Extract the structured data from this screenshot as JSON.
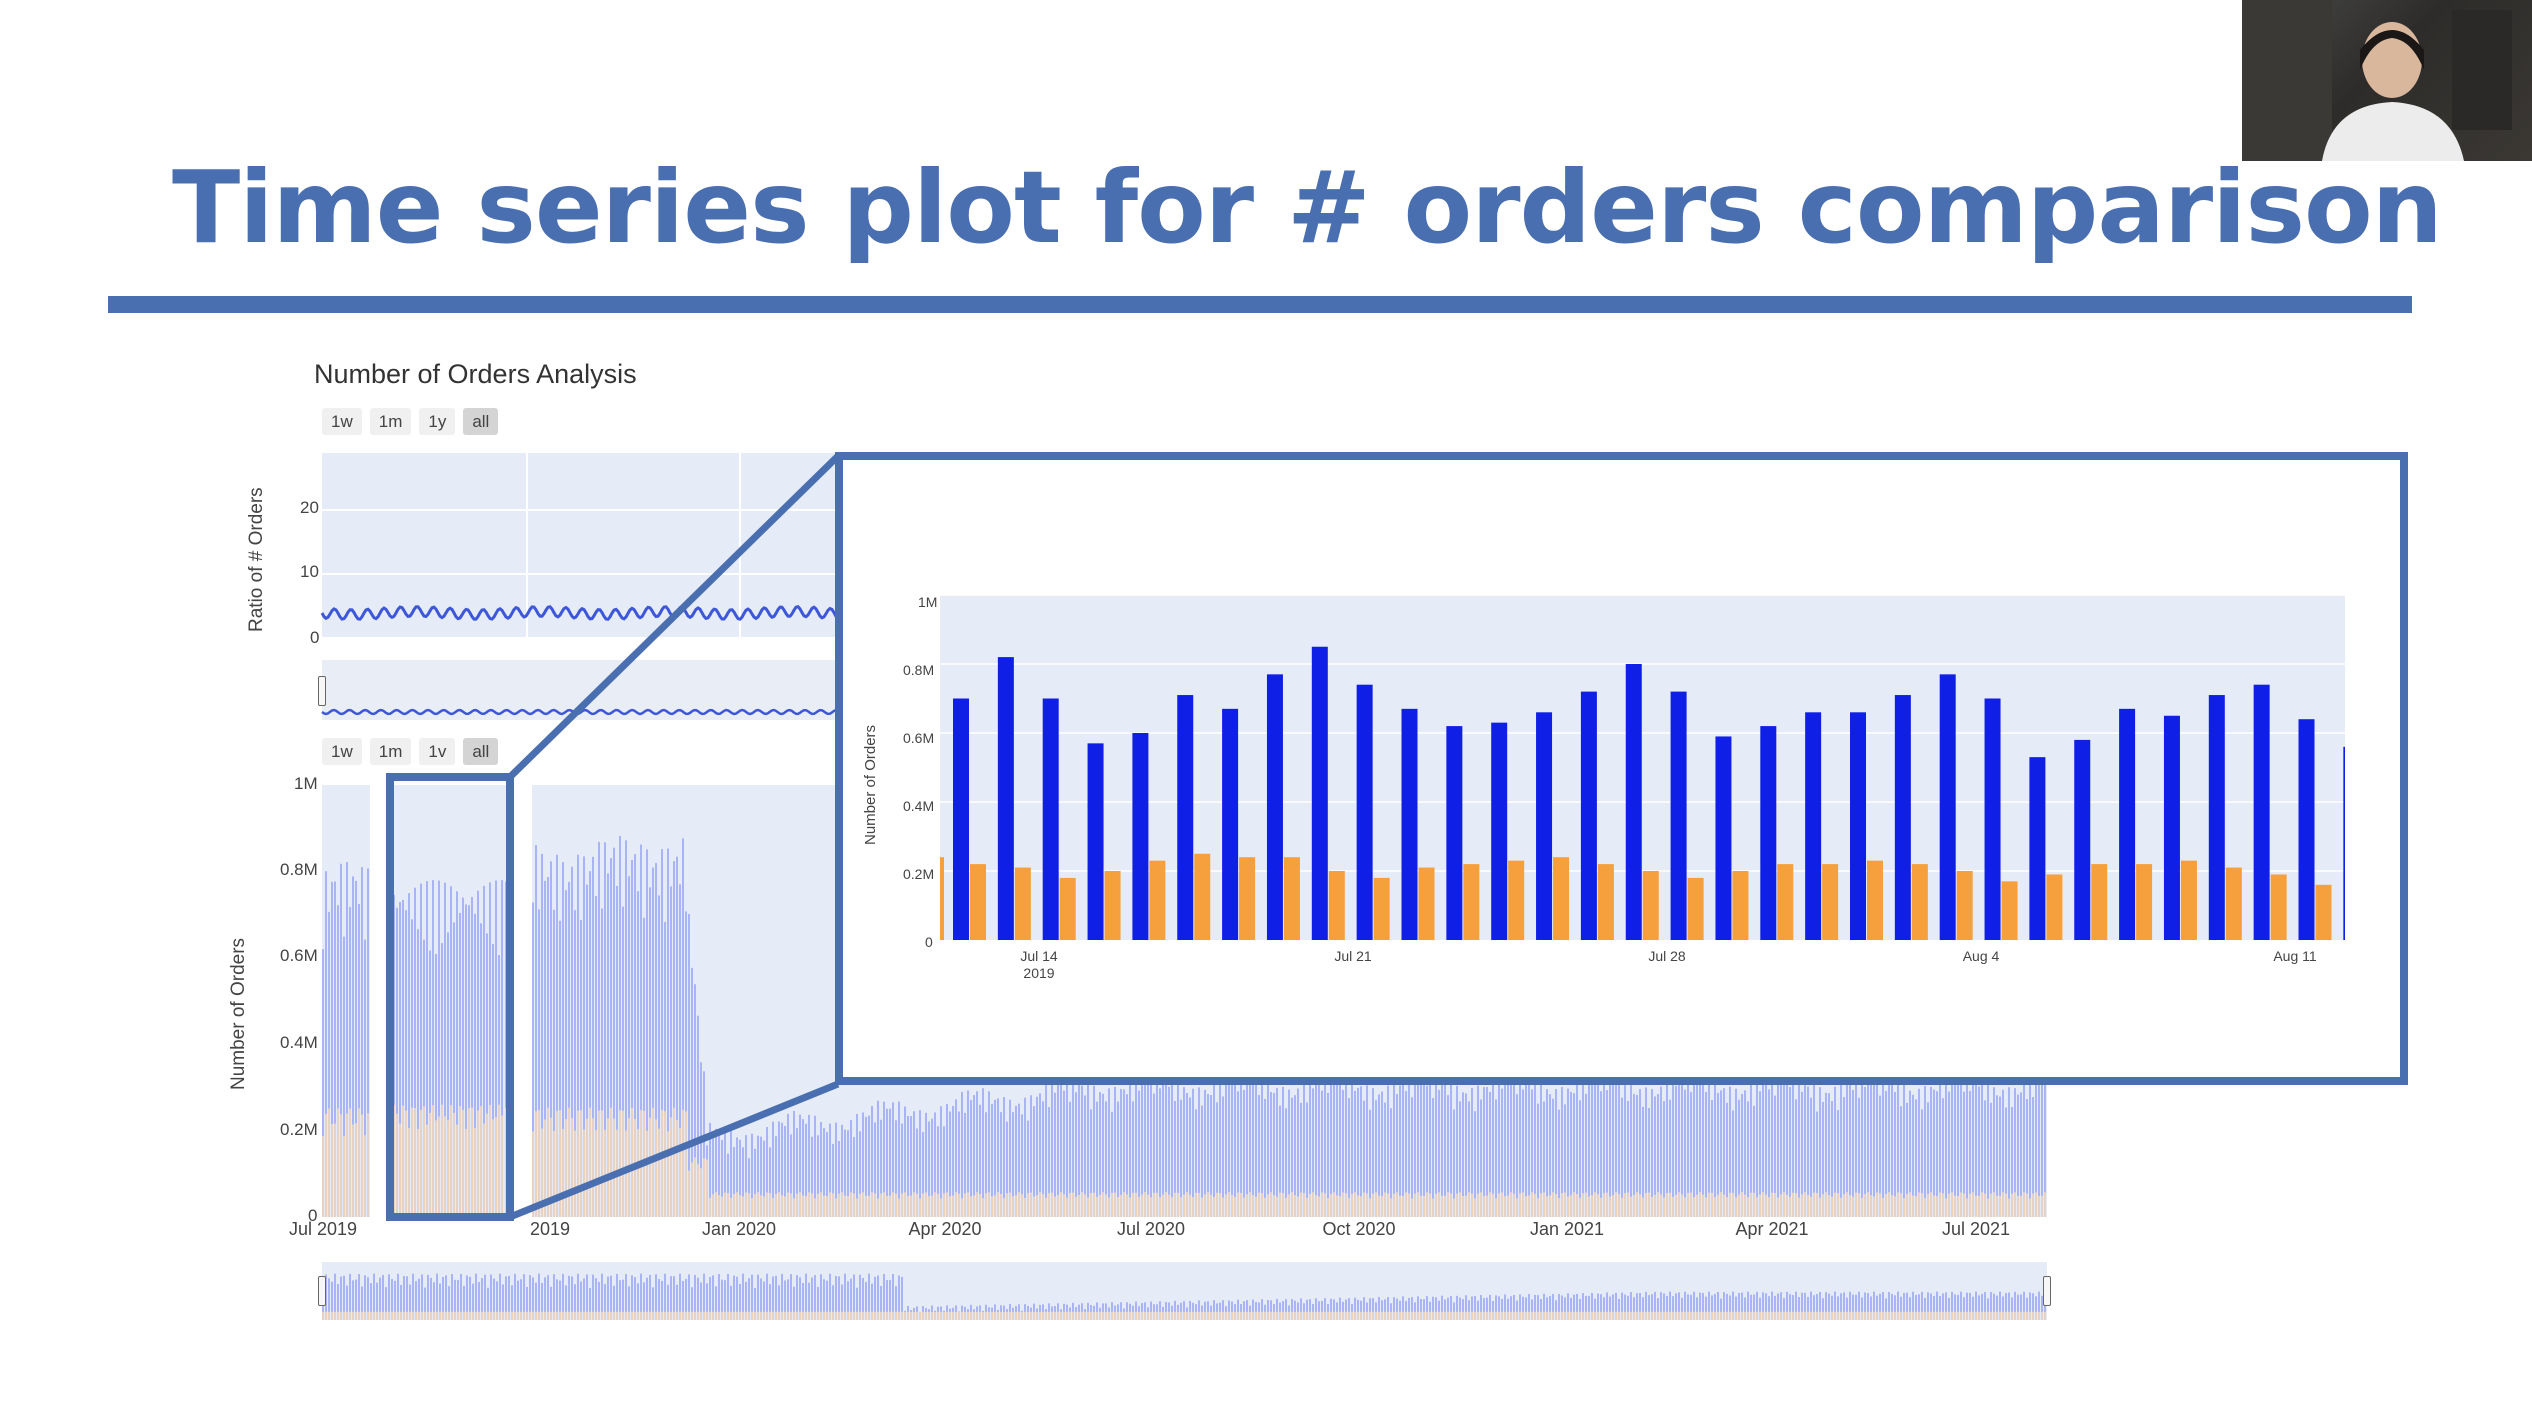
{
  "slide": {
    "title": "Time series plot for # orders comparison"
  },
  "figure": {
    "title": "Number of Orders Analysis",
    "range_buttons_top": [
      "1w",
      "1m",
      "1y",
      "all"
    ],
    "range_buttons_bottom": [
      "1w",
      "1m",
      "1v",
      "all"
    ],
    "active_range": "all"
  },
  "ratio_chart": {
    "ylabel": "Ratio of # Orders",
    "yticks": [
      "20",
      "10",
      "0"
    ]
  },
  "orders_chart": {
    "ylabel": "Number of Orders",
    "yticks": [
      "1M",
      "0.8M",
      "0.6M",
      "0.4M",
      "0.2M",
      "0"
    ],
    "xticks": [
      "Jul 2019",
      "2019",
      "Jan 2020",
      "Apr 2020",
      "Jul 2020",
      "Oct 2020",
      "Jan 2021",
      "Apr 2021",
      "Jul 2021"
    ]
  },
  "colors": {
    "accent": "#4a6fb1",
    "series_blue": "#0f1fe6",
    "series_orange": "#f5a03c",
    "series_blue_light": "#a9b4f7",
    "series_orange_light": "#e7d1c2",
    "plot_bg": "#e6ecf7"
  },
  "chart_data": [
    {
      "type": "bar",
      "ylabel": "Number of Orders",
      "yticks": [
        "1M",
        "0.8M",
        "0.6M",
        "0.4M",
        "0.2M",
        "0"
      ],
      "xticks": [
        "Jul 14\n2019",
        "Jul 21",
        "Jul 28",
        "Aug 4",
        "Aug 11"
      ],
      "ylim": [
        0,
        1000000
      ],
      "categories": [
        "2019-07-13",
        "2019-07-14",
        "2019-07-15",
        "2019-07-16",
        "2019-07-17",
        "2019-07-18",
        "2019-07-19",
        "2019-07-20",
        "2019-07-21",
        "2019-07-22",
        "2019-07-23",
        "2019-07-24",
        "2019-07-25",
        "2019-07-26",
        "2019-07-27",
        "2019-07-28",
        "2019-07-29",
        "2019-07-30",
        "2019-07-31",
        "2019-08-01",
        "2019-08-02",
        "2019-08-03",
        "2019-08-04",
        "2019-08-05",
        "2019-08-06",
        "2019-08-07",
        "2019-08-08",
        "2019-08-09",
        "2019-08-10",
        "2019-08-11",
        "2019-08-12"
      ],
      "series": [
        {
          "values": [
            700000,
            820000,
            700000,
            570000,
            600000,
            710000,
            670000,
            770000,
            850000,
            740000,
            670000,
            620000,
            630000,
            660000,
            720000,
            800000,
            720000,
            590000,
            620000,
            660000,
            660000,
            710000,
            770000,
            700000,
            530000,
            580000,
            670000,
            650000,
            710000,
            740000,
            640000
          ]
        },
        {
          "values": [
            220000,
            210000,
            180000,
            200000,
            230000,
            250000,
            240000,
            240000,
            200000,
            180000,
            210000,
            220000,
            230000,
            240000,
            220000,
            200000,
            180000,
            200000,
            220000,
            220000,
            230000,
            220000,
            200000,
            170000,
            190000,
            220000,
            220000,
            230000,
            210000,
            190000,
            160000
          ]
        }
      ],
      "partial_last_blue": 560000
    }
  ]
}
